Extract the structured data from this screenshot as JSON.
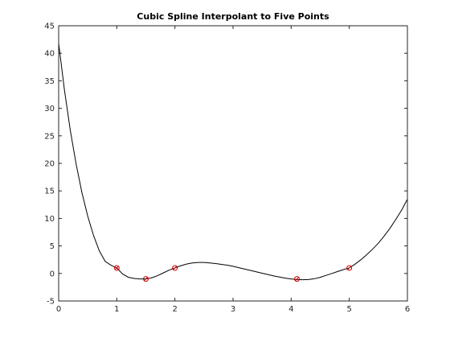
{
  "chart_data": {
    "type": "line",
    "title": "Cubic Spline Interpolant to Five Points",
    "xlabel": "",
    "ylabel": "",
    "xlim": [
      0,
      6
    ],
    "ylim": [
      -5,
      45
    ],
    "x_ticks": [
      0,
      1,
      2,
      3,
      4,
      5,
      6
    ],
    "y_ticks": [
      -5,
      0,
      5,
      10,
      15,
      20,
      25,
      30,
      35,
      40,
      45
    ],
    "grid": false,
    "legend": "none",
    "curve": {
      "x": [
        0,
        0.1,
        0.2,
        0.3,
        0.4,
        0.5,
        0.6,
        0.7,
        0.8,
        0.9,
        1.0,
        1.1,
        1.2,
        1.3,
        1.4,
        1.5,
        1.6,
        1.7,
        1.8,
        1.9,
        2.0,
        2.1,
        2.2,
        2.3,
        2.4,
        2.5,
        2.6,
        2.7,
        2.8,
        2.9,
        3.0,
        3.1,
        3.2,
        3.3,
        3.4,
        3.5,
        3.6,
        3.7,
        3.8,
        3.9,
        4.0,
        4.1,
        4.2,
        4.3,
        4.4,
        4.5,
        4.6,
        4.7,
        4.8,
        4.9,
        5.0,
        5.1,
        5.2,
        5.3,
        5.4,
        5.5,
        5.6,
        5.7,
        5.8,
        5.9,
        6.0
      ],
      "y": [
        41.8,
        33.3,
        26.0,
        19.9,
        14.7,
        10.4,
        6.9,
        4.1,
        2.2,
        1.5,
        1.0,
        -0.1,
        -0.7,
        -0.9,
        -1.0,
        -1.0,
        -0.8,
        -0.4,
        0.1,
        0.6,
        1.0,
        1.4,
        1.7,
        1.9,
        2.0,
        2.0,
        1.9,
        1.8,
        1.65,
        1.5,
        1.3,
        1.05,
        0.8,
        0.55,
        0.3,
        0.05,
        -0.2,
        -0.45,
        -0.65,
        -0.85,
        -1.0,
        -1.1,
        -1.15,
        -1.1,
        -0.95,
        -0.7,
        -0.35,
        0.0,
        0.35,
        0.7,
        1.0,
        1.7,
        2.5,
        3.4,
        4.4,
        5.5,
        6.8,
        8.2,
        9.8,
        11.5,
        13.5
      ]
    },
    "points": {
      "x": [
        1,
        1.5,
        2,
        4.1,
        5
      ],
      "y": [
        1,
        -1,
        1,
        -1,
        1
      ]
    },
    "colors": {
      "curve": "#000000",
      "markers": "#cc0000",
      "axes": "#262626"
    }
  }
}
